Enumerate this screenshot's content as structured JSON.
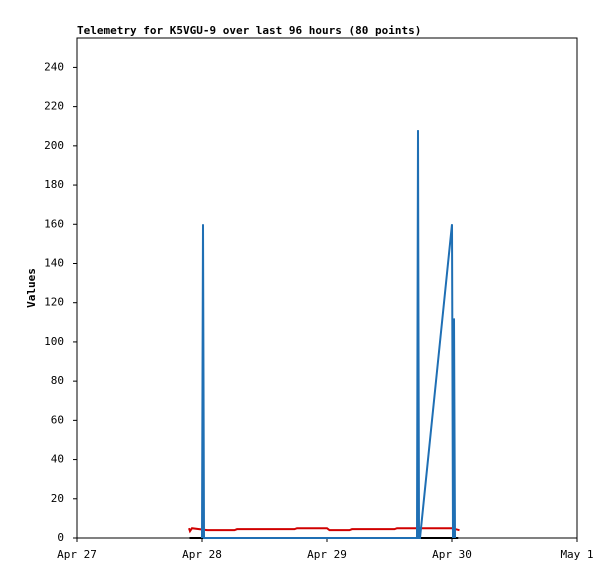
{
  "chart_data": {
    "type": "line",
    "title": "Telemetry for K5VGU-9 over last 96 hours (80 points)",
    "y_label": "Values",
    "xlim": [
      0,
      4
    ],
    "xticks": [
      {
        "value": 0,
        "label": "Apr 27"
      },
      {
        "value": 1,
        "label": "Apr 28"
      },
      {
        "value": 2,
        "label": "Apr 29"
      },
      {
        "value": 3,
        "label": "Apr 30"
      },
      {
        "value": 4,
        "label": "May 1"
      }
    ],
    "ylim": [
      0,
      255
    ],
    "yticks": [
      0,
      20,
      40,
      60,
      80,
      100,
      120,
      140,
      160,
      180,
      200,
      220,
      240
    ],
    "grid": false,
    "series": [
      {
        "color": "#000000",
        "x": [
          0.9,
          3.05
        ],
        "values": [
          0,
          0
        ]
      },
      {
        "color": "#d00000",
        "x": [
          0.896,
          0.904,
          0.92,
          1.04,
          1.26,
          1.28,
          1.74,
          1.76,
          2.0,
          2.02,
          2.18,
          2.2,
          2.54,
          2.56,
          3.0,
          3.06
        ],
        "values": [
          5,
          3.5,
          5,
          4,
          4,
          4.5,
          4.5,
          5,
          5,
          4,
          4,
          4.5,
          4.5,
          5,
          5,
          4
        ]
      },
      {
        "color": "#1f6fb4",
        "x": [
          1.0,
          1.008,
          1.016,
          2.72,
          2.728,
          2.736,
          2.744,
          3.0,
          3.008,
          3.016,
          3.024
        ],
        "values": [
          0,
          160,
          0,
          0,
          208,
          0,
          0,
          160,
          0,
          112,
          0
        ]
      }
    ]
  }
}
